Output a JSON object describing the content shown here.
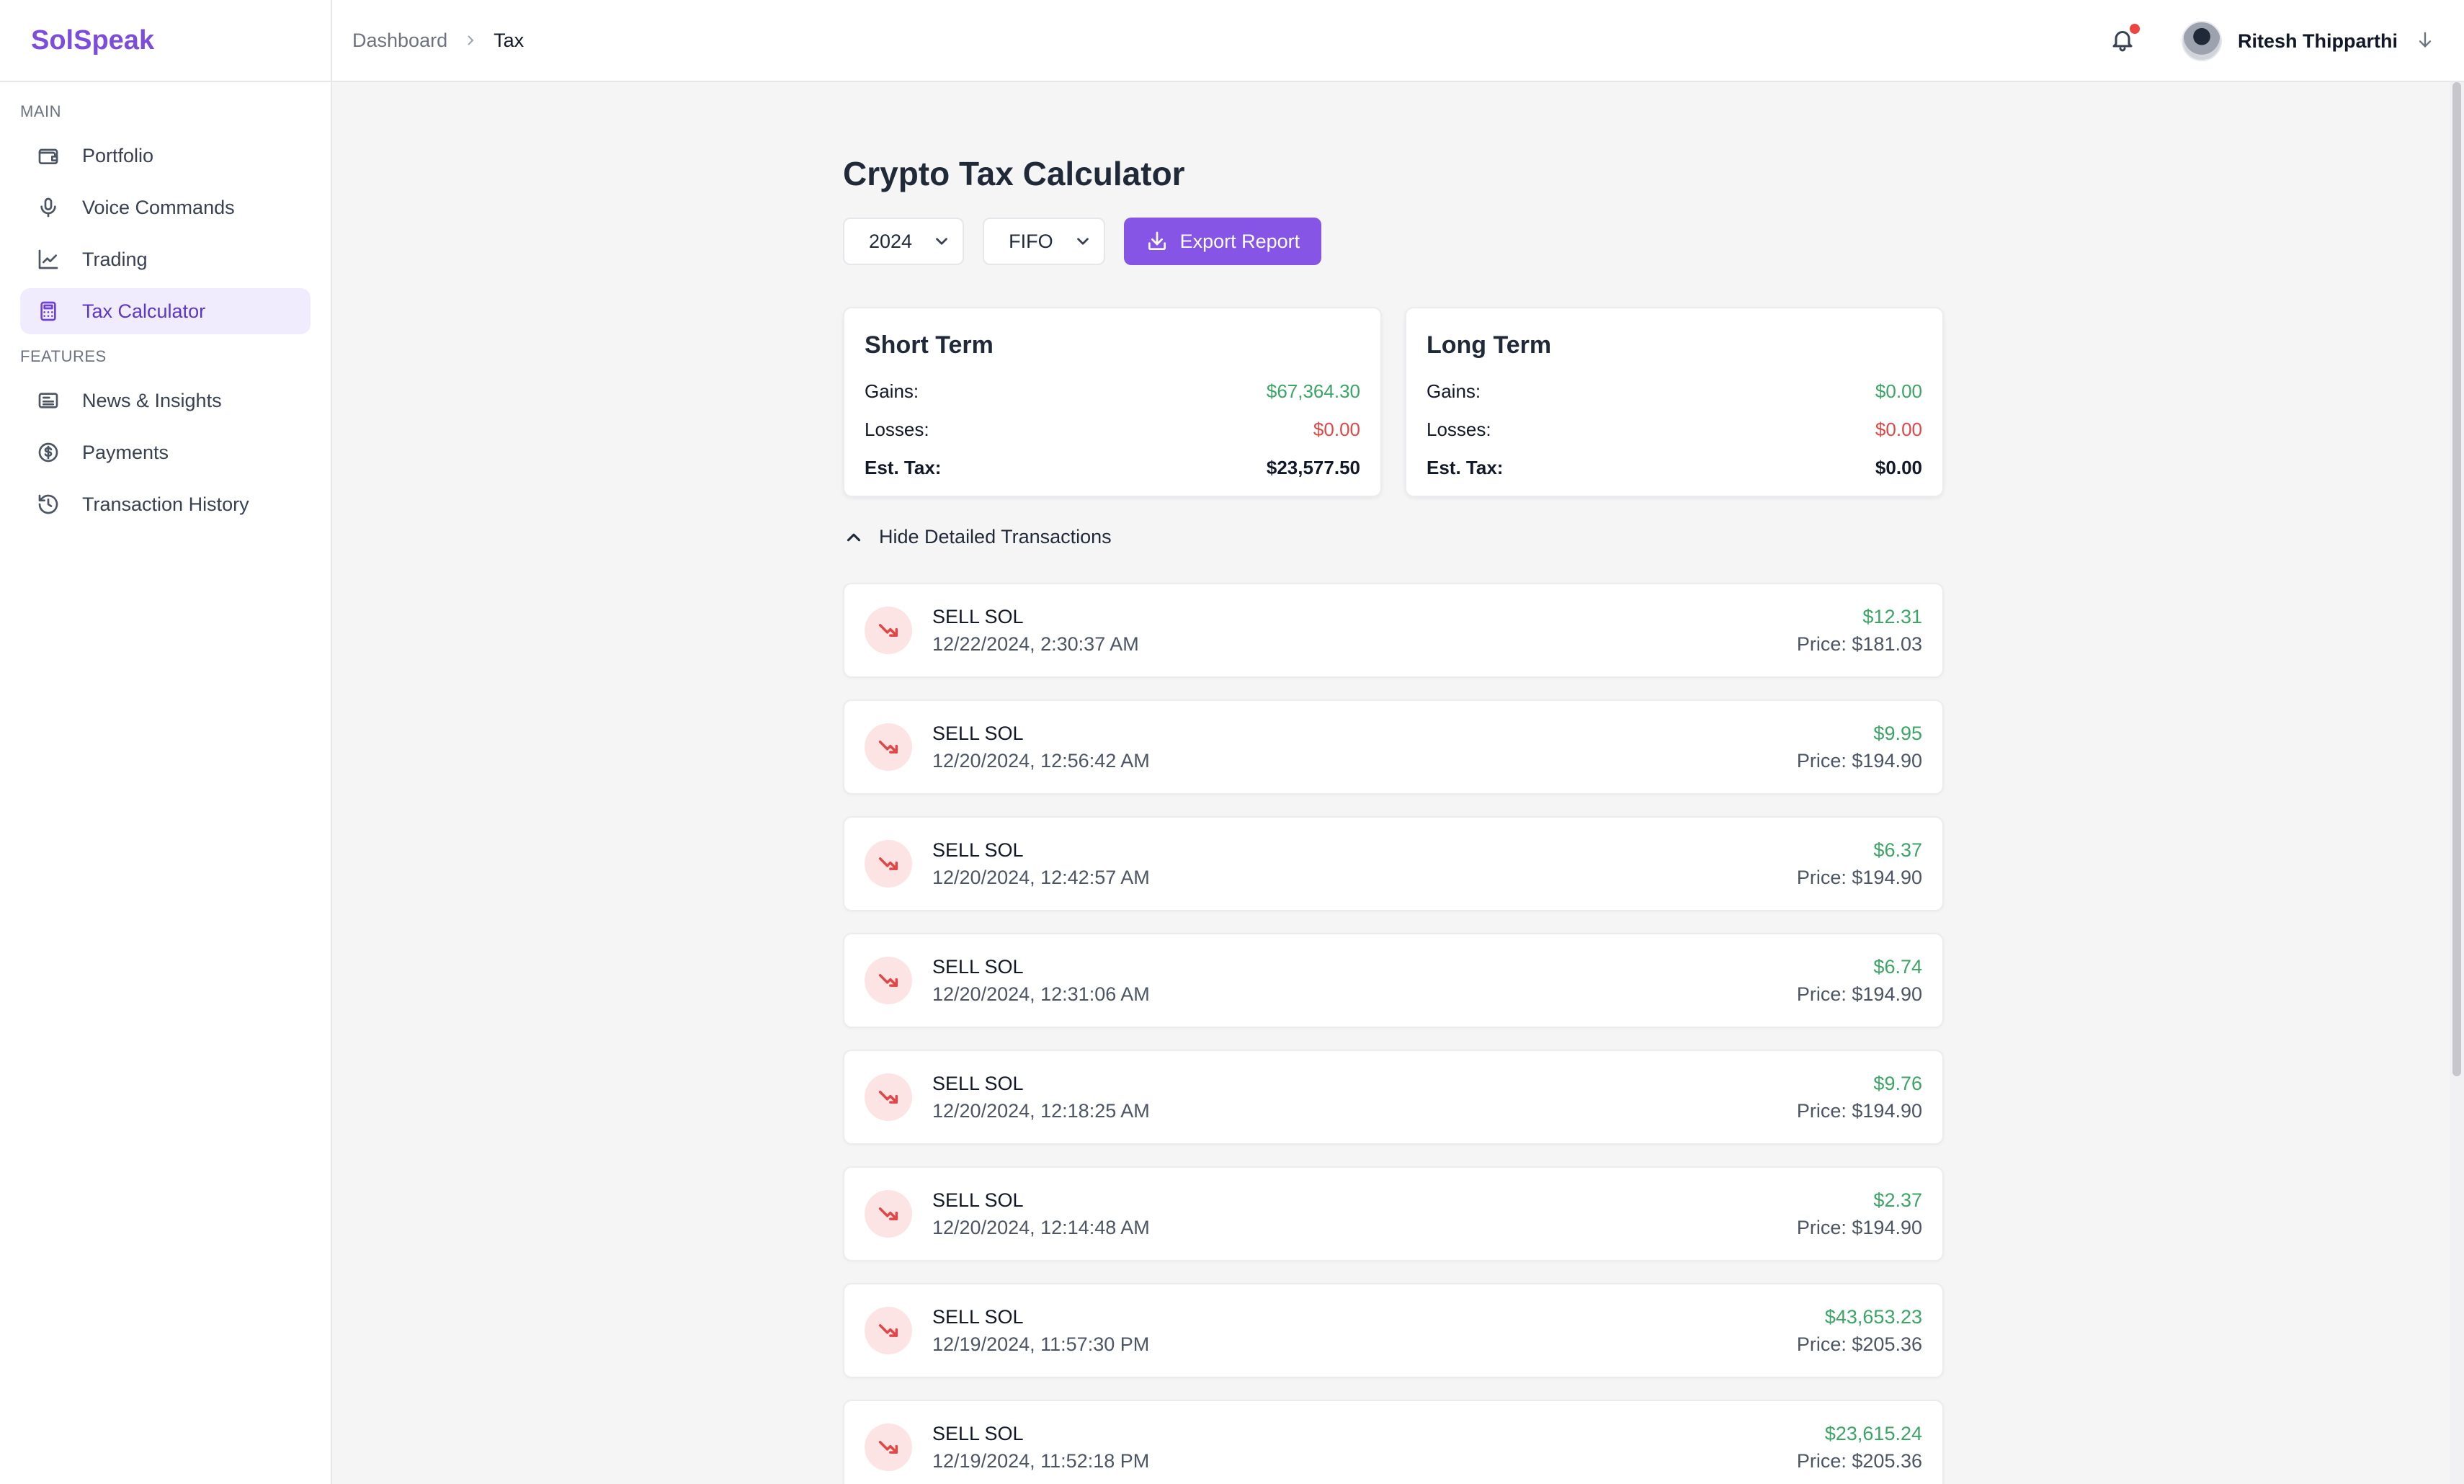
{
  "brand": "SolSpeak",
  "sidebar": {
    "sections": [
      {
        "heading": "MAIN",
        "items": [
          {
            "label": "Portfolio",
            "icon": "wallet-icon"
          },
          {
            "label": "Voice Commands",
            "icon": "microphone-icon"
          },
          {
            "label": "Trading",
            "icon": "chart-line-icon"
          },
          {
            "label": "Tax Calculator",
            "icon": "calculator-icon",
            "active": true
          }
        ]
      },
      {
        "heading": "FEATURES",
        "items": [
          {
            "label": "News & Insights",
            "icon": "newspaper-icon"
          },
          {
            "label": "Payments",
            "icon": "dollar-circle-icon"
          },
          {
            "label": "Transaction History",
            "icon": "history-icon"
          }
        ]
      }
    ]
  },
  "header": {
    "breadcrumb": [
      "Dashboard",
      "Tax"
    ],
    "user_name": "Ritesh Thipparthi",
    "has_notification": true
  },
  "page": {
    "title": "Crypto Tax Calculator",
    "year_select": "2024",
    "method_select": "FIFO",
    "export_label": "Export Report",
    "toggle_label": "Hide Detailed Transactions"
  },
  "summary": {
    "short_term": {
      "title": "Short Term",
      "gains_label": "Gains:",
      "gains": "$67,364.30",
      "losses_label": "Losses:",
      "losses": "$0.00",
      "tax_label": "Est. Tax:",
      "tax": "$23,577.50"
    },
    "long_term": {
      "title": "Long Term",
      "gains_label": "Gains:",
      "gains": "$0.00",
      "losses_label": "Losses:",
      "losses": "$0.00",
      "tax_label": "Est. Tax:",
      "tax": "$0.00"
    }
  },
  "transactions": [
    {
      "type": "SELL SOL",
      "date": "12/22/2024, 2:30:37 AM",
      "amount": "$12.31",
      "price": "Price: $181.03"
    },
    {
      "type": "SELL SOL",
      "date": "12/20/2024, 12:56:42 AM",
      "amount": "$9.95",
      "price": "Price: $194.90"
    },
    {
      "type": "SELL SOL",
      "date": "12/20/2024, 12:42:57 AM",
      "amount": "$6.37",
      "price": "Price: $194.90"
    },
    {
      "type": "SELL SOL",
      "date": "12/20/2024, 12:31:06 AM",
      "amount": "$6.74",
      "price": "Price: $194.90"
    },
    {
      "type": "SELL SOL",
      "date": "12/20/2024, 12:18:25 AM",
      "amount": "$9.76",
      "price": "Price: $194.90"
    },
    {
      "type": "SELL SOL",
      "date": "12/20/2024, 12:14:48 AM",
      "amount": "$2.37",
      "price": "Price: $194.90"
    },
    {
      "type": "SELL SOL",
      "date": "12/19/2024, 11:57:30 PM",
      "amount": "$43,653.23",
      "price": "Price: $205.36"
    },
    {
      "type": "SELL SOL",
      "date": "12/19/2024, 11:52:18 PM",
      "amount": "$23,615.24",
      "price": "Price: $205.36"
    }
  ],
  "colors": {
    "accent": "#8655e6",
    "gain": "#3aa565",
    "loss": "#e04747"
  }
}
